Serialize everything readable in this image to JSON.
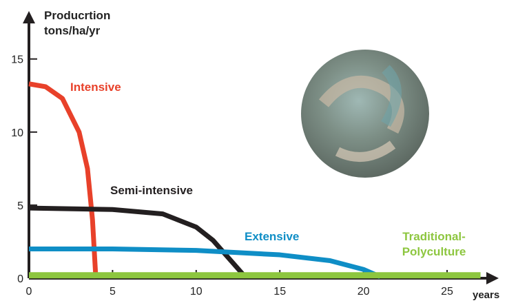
{
  "chart_data": {
    "type": "line",
    "ylabel": "Producrtion tons/ha/yr",
    "xlabel": "years",
    "xlim": [
      0,
      28.5
    ],
    "ylim": [
      0,
      18
    ],
    "xticks": [
      0,
      5,
      10,
      15,
      20,
      25
    ],
    "yticks": [
      0,
      5,
      10,
      15
    ],
    "series": [
      {
        "name": "Intensive",
        "color": "#e8412a",
        "x": [
          0,
          1,
          2,
          3,
          3.5,
          3.8,
          4
        ],
        "values": [
          13.3,
          13.1,
          12.3,
          10,
          7.5,
          4,
          0
        ]
      },
      {
        "name": "Semi-intensive",
        "color": "#231f20",
        "x": [
          0,
          5,
          8,
          10,
          11,
          12,
          13
        ],
        "values": [
          4.8,
          4.7,
          4.4,
          3.5,
          2.6,
          1.3,
          0
        ]
      },
      {
        "name": "Extensive",
        "color": "#0f8ec6",
        "x": [
          0,
          5,
          10,
          15,
          18,
          20,
          21
        ],
        "values": [
          2,
          2,
          1.9,
          1.6,
          1.2,
          0.6,
          0.1
        ]
      },
      {
        "name": "Traditional-Polyculture",
        "color": "#8dc63f",
        "x": [
          0,
          27
        ],
        "values": [
          0.2,
          0.2
        ]
      }
    ]
  }
}
